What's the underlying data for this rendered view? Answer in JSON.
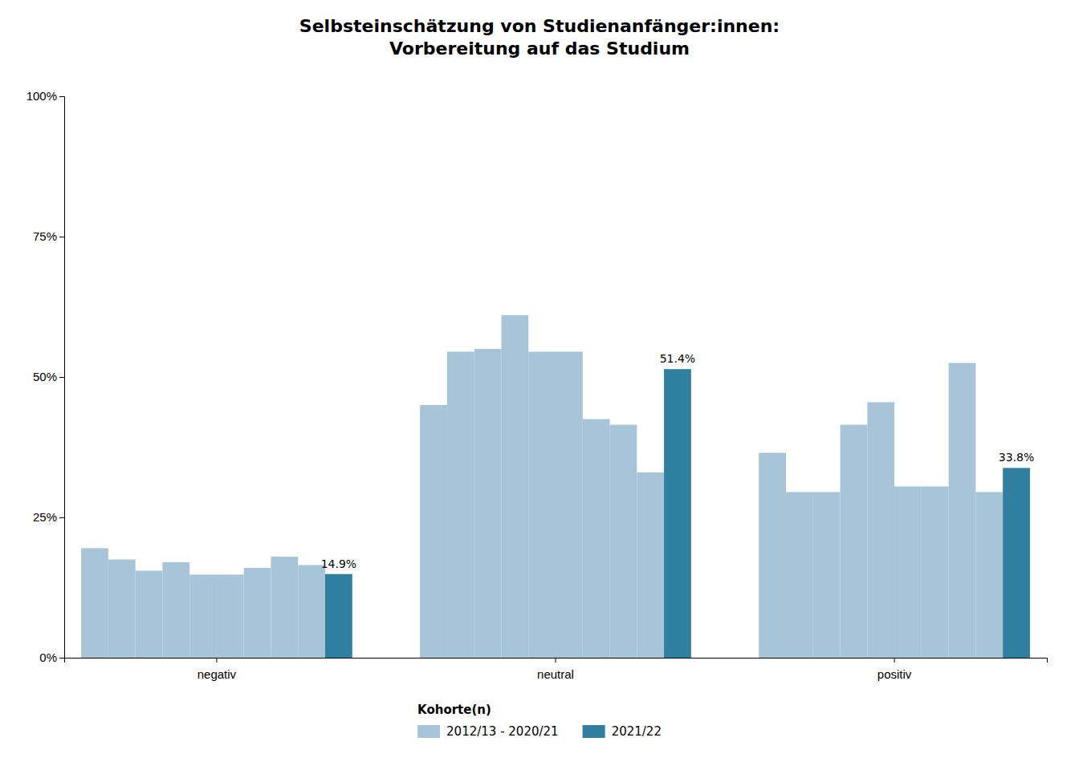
{
  "chart_data": {
    "type": "bar",
    "title": "Selbsteinschätzung von Studienanfänger:innen:\nVorbereitung auf das Studium",
    "categories": [
      "negativ",
      "neutral",
      "positiv"
    ],
    "series": [
      {
        "name": "2012/13 - 2020/21",
        "color": "#a8c4d8",
        "values": [
          0.195,
          0.45,
          0.365
        ]
      },
      {
        "color": "#a8c4d8",
        "values": [
          0.175,
          0.545,
          0.295
        ]
      },
      {
        "color": "#a8c4d8",
        "values": [
          0.155,
          0.55,
          0.295
        ]
      },
      {
        "color": "#a8c4d8",
        "values": [
          0.17,
          0.61,
          0.415
        ]
      },
      {
        "color": "#a8c4d8",
        "values": [
          0.148,
          0.545,
          0.455
        ]
      },
      {
        "color": "#a8c4d8",
        "values": [
          0.148,
          0.545,
          0.305
        ]
      },
      {
        "color": "#a8c4d8",
        "values": [
          0.16,
          0.425,
          0.305
        ]
      },
      {
        "color": "#a8c4d8",
        "values": [
          0.18,
          0.415,
          0.525
        ]
      },
      {
        "color": "#a8c4d8",
        "values": [
          0.165,
          0.33,
          0.295
        ]
      },
      {
        "name": "2021/22",
        "color": "#2e7fa0",
        "values": [
          0.149,
          0.514,
          0.338
        ],
        "value_labels": [
          "14.9%",
          "51.4%",
          "33.8%"
        ]
      }
    ],
    "legend_title": "Kohorte(n)",
    "legend": "bottom",
    "ylim": [
      0,
      1.0
    ],
    "yticks": [
      {
        "value": 0.0,
        "label": "0%"
      },
      {
        "value": 0.25,
        "label": "25%"
      },
      {
        "value": 0.5,
        "label": "50%"
      },
      {
        "value": 0.75,
        "label": "75%"
      },
      {
        "value": 1.0,
        "label": "100%"
      }
    ],
    "grid": false
  }
}
